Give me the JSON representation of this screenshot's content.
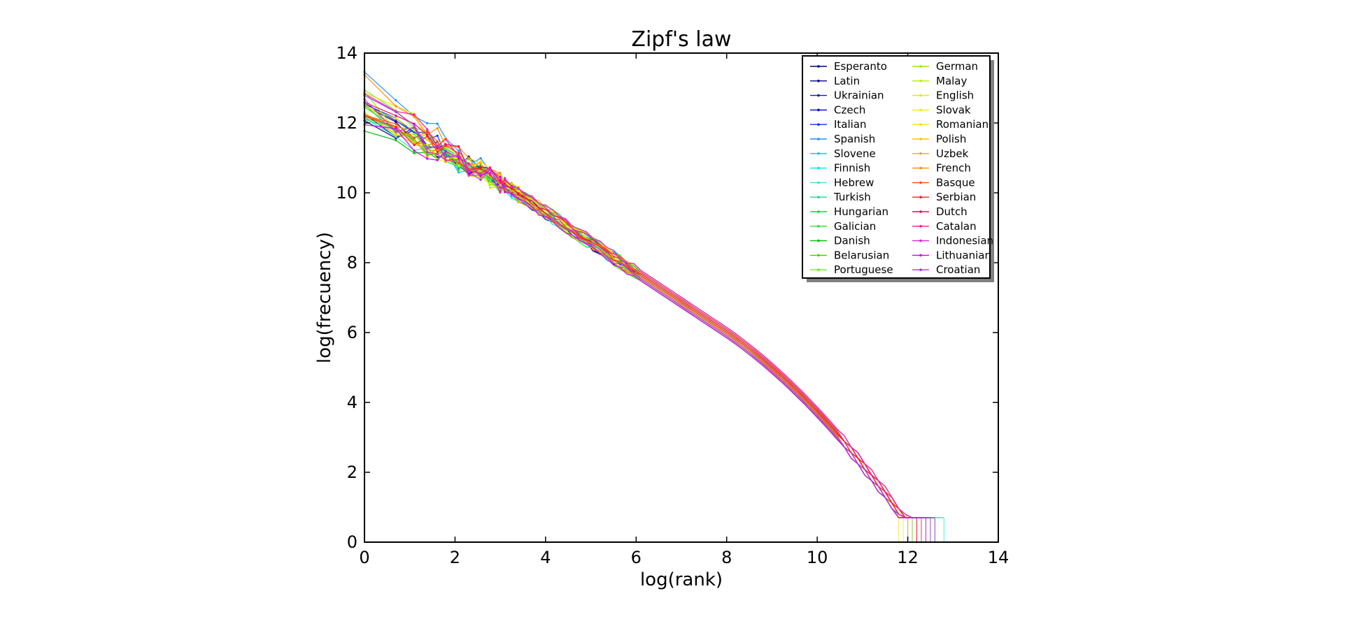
{
  "chart_data": {
    "type": "line",
    "title": "Zipf's law",
    "xlabel": "log(rank)",
    "ylabel": "log(frecuency)",
    "xlim": [
      0,
      14
    ],
    "ylim": [
      0,
      14
    ],
    "xticks": [
      0,
      2,
      4,
      6,
      8,
      10,
      12,
      14
    ],
    "yticks": [
      0,
      2,
      4,
      6,
      8,
      10,
      12,
      14
    ],
    "grid": false,
    "legend": {
      "position": "top-right",
      "columns": 2,
      "shadow": true
    },
    "series": [
      {
        "name": "Esperanto",
        "color": "#000080",
        "y0": 12.5,
        "xend": 12.2
      },
      {
        "name": "Latin",
        "color": "#00008b",
        "y0": 12.2,
        "xend": 12.0
      },
      {
        "name": "Ukrainian",
        "color": "#1a1aa6",
        "y0": 12.6,
        "xend": 12.3
      },
      {
        "name": "Czech",
        "color": "#0000cd",
        "y0": 12.3,
        "xend": 12.1
      },
      {
        "name": "Italian",
        "color": "#0033ff",
        "y0": 12.8,
        "xend": 12.4
      },
      {
        "name": "Spanish",
        "color": "#1e90ff",
        "y0": 13.4,
        "xend": 12.6
      },
      {
        "name": "Slovene",
        "color": "#00bfff",
        "y0": 12.1,
        "xend": 12.1
      },
      {
        "name": "Finnish",
        "color": "#00e5ee",
        "y0": 12.4,
        "xend": 12.8
      },
      {
        "name": "Hebrew",
        "color": "#40e0d0",
        "y0": 12.0,
        "xend": 12.5
      },
      {
        "name": "Turkish",
        "color": "#20d890",
        "y0": 12.2,
        "xend": 12.6
      },
      {
        "name": "Hungarian",
        "color": "#22cc44",
        "y0": 12.5,
        "xend": 12.5
      },
      {
        "name": "Galician",
        "color": "#33dd33",
        "y0": 12.3,
        "xend": 12.2
      },
      {
        "name": "Danish",
        "color": "#00c000",
        "y0": 12.0,
        "xend": 12.3
      },
      {
        "name": "Belarusian",
        "color": "#44cc00",
        "y0": 12.4,
        "xend": 12.2
      },
      {
        "name": "Portuguese",
        "color": "#66ee22",
        "y0": 12.9,
        "xend": 12.4
      },
      {
        "name": "German",
        "color": "#99ee00",
        "y0": 12.6,
        "xend": 12.3
      },
      {
        "name": "Malay",
        "color": "#bbee00",
        "y0": 12.2,
        "xend": 12.0
      },
      {
        "name": "English",
        "color": "#ddee00",
        "y0": 12.7,
        "xend": 12.1
      },
      {
        "name": "Slovak",
        "color": "#eeee00",
        "y0": 12.3,
        "xend": 11.9
      },
      {
        "name": "Romanian",
        "color": "#ffe000",
        "y0": 13.0,
        "xend": 11.8
      },
      {
        "name": "Polish",
        "color": "#ffc000",
        "y0": 12.4,
        "xend": 12.0
      },
      {
        "name": "Uzbek",
        "color": "#ffa500",
        "y0": 12.1,
        "xend": 12.4
      },
      {
        "name": "French",
        "color": "#ff8c00",
        "y0": 13.2,
        "xend": 12.5
      },
      {
        "name": "Basque",
        "color": "#ff5010",
        "y0": 12.5,
        "xend": 12.3
      },
      {
        "name": "Serbian",
        "color": "#ff2020",
        "y0": 12.2,
        "xend": 12.2
      },
      {
        "name": "Dutch",
        "color": "#ff0050",
        "y0": 12.8,
        "xend": 12.2
      },
      {
        "name": "Catalan",
        "color": "#ff1493",
        "y0": 13.0,
        "xend": 12.3
      },
      {
        "name": "Indonesian",
        "color": "#dd22dd",
        "y0": 12.4,
        "xend": 12.6
      },
      {
        "name": "Lithuanian",
        "color": "#cc00ff",
        "y0": 12.1,
        "xend": 12.4
      },
      {
        "name": "Croatian",
        "color": "#aa33ff",
        "y0": 12.6,
        "xend": 12.5
      }
    ]
  }
}
